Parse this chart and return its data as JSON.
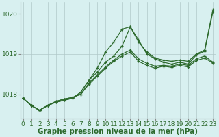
{
  "background_color": "#d8f0f0",
  "grid_color": "#b0c8c8",
  "line_color": "#2d6a2d",
  "xlabel": "Graphe pression niveau de la mer (hPa)",
  "xlabel_fontsize": 7.5,
  "tick_fontsize": 6.5,
  "ytick_labels": [
    1018,
    1019,
    1020
  ],
  "ylim": [
    1017.4,
    1020.3
  ],
  "xlim": [
    -0.3,
    23.3
  ],
  "xtick_labels": [
    0,
    1,
    2,
    3,
    4,
    5,
    6,
    7,
    8,
    9,
    10,
    11,
    12,
    13,
    14,
    15,
    16,
    17,
    18,
    19,
    20,
    21,
    22,
    23
  ],
  "series": [
    [
      1017.9,
      1017.72,
      1017.6,
      1017.72,
      1017.8,
      1017.85,
      1017.9,
      1018.05,
      1018.35,
      1018.65,
      1019.05,
      1019.3,
      1019.62,
      1019.68,
      1019.3,
      1019.05,
      1018.9,
      1018.85,
      1018.82,
      1018.85,
      1018.82,
      1019.0,
      1019.1,
      1020.1
    ],
    [
      1017.9,
      1017.72,
      1017.6,
      1017.72,
      1017.8,
      1017.85,
      1017.9,
      1018.05,
      1018.35,
      1018.55,
      1018.8,
      1018.95,
      1019.2,
      1019.68,
      1019.35,
      1019.0,
      1018.88,
      1018.8,
      1018.75,
      1018.8,
      1018.75,
      1018.98,
      1019.07,
      1020.05
    ],
    [
      1017.9,
      1017.72,
      1017.6,
      1017.72,
      1017.82,
      1017.88,
      1017.92,
      1018.0,
      1018.28,
      1018.48,
      1018.68,
      1018.85,
      1019.0,
      1019.1,
      1018.88,
      1018.77,
      1018.7,
      1018.72,
      1018.7,
      1018.75,
      1018.72,
      1018.88,
      1018.95,
      1018.8
    ],
    [
      1017.9,
      1017.72,
      1017.6,
      1017.72,
      1017.82,
      1017.88,
      1017.92,
      1018.0,
      1018.25,
      1018.45,
      1018.65,
      1018.82,
      1018.95,
      1019.05,
      1018.82,
      1018.72,
      1018.65,
      1018.7,
      1018.67,
      1018.72,
      1018.68,
      1018.84,
      1018.9,
      1018.78
    ]
  ]
}
